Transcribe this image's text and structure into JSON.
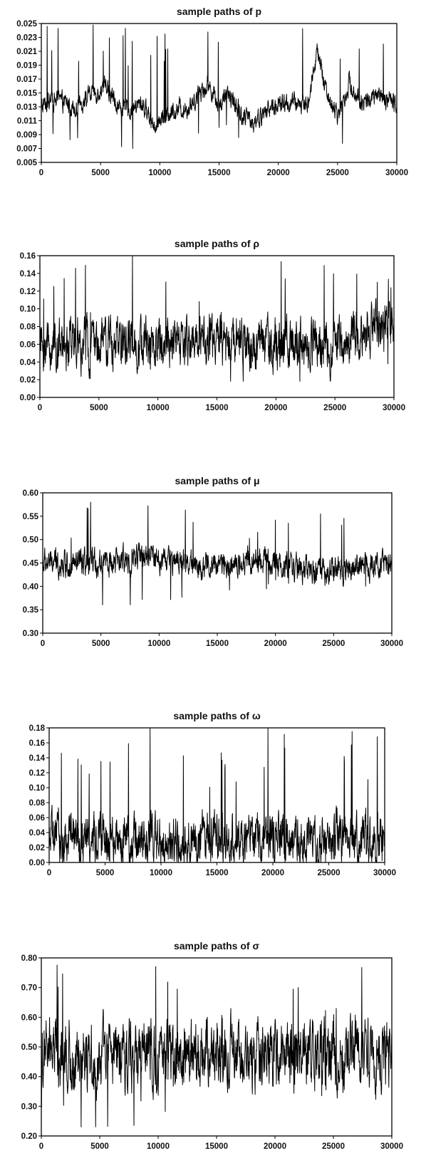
{
  "chart_data": [
    {
      "type": "line",
      "title": "sample paths of p",
      "xlabel": "",
      "ylabel": "",
      "xlim": [
        0,
        30000
      ],
      "ylim": [
        0.005,
        0.025
      ],
      "x_ticks": [
        "0",
        "5000",
        "10000",
        "15000",
        "20000",
        "25000",
        "30000"
      ],
      "y_ticks": [
        "0.005",
        "0.007",
        "0.009",
        "0.011",
        "0.013",
        "0.015",
        "0.017",
        "0.019",
        "0.021",
        "0.023",
        "0.025"
      ],
      "grid": false,
      "series": [
        {
          "values": [
            {
              "x": 0,
              "y": 0.013
            },
            {
              "x": 1000,
              "y": 0.014
            },
            {
              "x": 2000,
              "y": 0.0135
            },
            {
              "x": 3000,
              "y": 0.013
            },
            {
              "x": 4000,
              "y": 0.0145
            },
            {
              "x": 5500,
              "y": 0.016
            },
            {
              "x": 6500,
              "y": 0.013
            },
            {
              "x": 7500,
              "y": 0.0125
            },
            {
              "x": 8500,
              "y": 0.0135
            },
            {
              "x": 9500,
              "y": 0.0105
            },
            {
              "x": 11000,
              "y": 0.0125
            },
            {
              "x": 12500,
              "y": 0.013
            },
            {
              "x": 14000,
              "y": 0.0165
            },
            {
              "x": 15000,
              "y": 0.0135
            },
            {
              "x": 16000,
              "y": 0.0145
            },
            {
              "x": 17000,
              "y": 0.0115
            },
            {
              "x": 18000,
              "y": 0.011
            },
            {
              "x": 19500,
              "y": 0.013
            },
            {
              "x": 21000,
              "y": 0.0135
            },
            {
              "x": 22500,
              "y": 0.0135
            },
            {
              "x": 23300,
              "y": 0.021
            },
            {
              "x": 24000,
              "y": 0.0155
            },
            {
              "x": 25000,
              "y": 0.0115
            },
            {
              "x": 26000,
              "y": 0.0165
            },
            {
              "x": 27000,
              "y": 0.0135
            },
            {
              "x": 28500,
              "y": 0.0145
            },
            {
              "x": 30000,
              "y": 0.0135
            }
          ],
          "y_min": 0.007,
          "y_max": 0.0248,
          "noise": 0.0011
        }
      ]
    },
    {
      "type": "line",
      "title": "sample paths of ρ",
      "xlabel": "",
      "ylabel": "",
      "xlim": [
        0,
        30000
      ],
      "ylim": [
        0,
        0.16
      ],
      "x_ticks": [
        "0",
        "5000",
        "10000",
        "15000",
        "20000",
        "25000",
        "30000"
      ],
      "y_ticks": [
        "0.00",
        "0.02",
        "0.04",
        "0.06",
        "0.08",
        "0.10",
        "0.12",
        "0.14",
        "0.16"
      ],
      "grid": false,
      "series": [
        {
          "values": [
            {
              "x": 0,
              "y": 0.06
            },
            {
              "x": 5000,
              "y": 0.06
            },
            {
              "x": 10000,
              "y": 0.06
            },
            {
              "x": 15000,
              "y": 0.065
            },
            {
              "x": 20000,
              "y": 0.06
            },
            {
              "x": 25000,
              "y": 0.06
            },
            {
              "x": 28000,
              "y": 0.075
            },
            {
              "x": 30000,
              "y": 0.08
            }
          ],
          "y_min": 0.018,
          "y_max": 0.16,
          "noise": 0.022
        }
      ]
    },
    {
      "type": "line",
      "title": "sample paths of μ",
      "xlabel": "",
      "ylabel": "",
      "xlim": [
        0,
        30000
      ],
      "ylim": [
        0.3,
        0.6
      ],
      "x_ticks": [
        "0",
        "5000",
        "10000",
        "15000",
        "20000",
        "25000",
        "30000"
      ],
      "y_ticks": [
        "0.30",
        "0.35",
        "0.40",
        "0.45",
        "0.50",
        "0.55",
        "0.60"
      ],
      "grid": false,
      "series": [
        {
          "values": [
            {
              "x": 0,
              "y": 0.45
            },
            {
              "x": 5000,
              "y": 0.45
            },
            {
              "x": 9000,
              "y": 0.465
            },
            {
              "x": 14000,
              "y": 0.44
            },
            {
              "x": 18000,
              "y": 0.46
            },
            {
              "x": 23500,
              "y": 0.43
            },
            {
              "x": 30000,
              "y": 0.45
            }
          ],
          "y_min": 0.36,
          "y_max": 0.58,
          "noise": 0.022
        }
      ]
    },
    {
      "type": "line",
      "title": "sample paths of ω",
      "xlabel": "",
      "ylabel": "",
      "xlim": [
        0,
        30000
      ],
      "ylim": [
        0,
        0.18
      ],
      "x_ticks": [
        "0",
        "5000",
        "10000",
        "15000",
        "20000",
        "25000",
        "30000"
      ],
      "y_ticks": [
        "0.00",
        "0.02",
        "0.04",
        "0.06",
        "0.08",
        "0.10",
        "0.12",
        "0.14",
        "0.16",
        "0.18"
      ],
      "grid": false,
      "series": [
        {
          "values": [
            {
              "x": 0,
              "y": 0.03
            },
            {
              "x": 10000,
              "y": 0.03
            },
            {
              "x": 20000,
              "y": 0.03
            },
            {
              "x": 30000,
              "y": 0.03
            }
          ],
          "y_min": 0.0,
          "y_max": 0.18,
          "noise": 0.025
        }
      ]
    },
    {
      "type": "line",
      "title": "sample paths of σ",
      "xlabel": "",
      "ylabel": "",
      "xlim": [
        0,
        30000
      ],
      "ylim": [
        0.2,
        0.8
      ],
      "x_ticks": [
        "0",
        "5000",
        "10000",
        "15000",
        "20000",
        "25000",
        "30000"
      ],
      "y_ticks": [
        "0.20",
        "0.30",
        "0.40",
        "0.50",
        "0.60",
        "0.70",
        "0.80"
      ],
      "grid": false,
      "series": [
        {
          "values": [
            {
              "x": 0,
              "y": 0.47
            },
            {
              "x": 10000,
              "y": 0.47
            },
            {
              "x": 20000,
              "y": 0.47
            },
            {
              "x": 30000,
              "y": 0.47
            }
          ],
          "y_min": 0.23,
          "y_max": 0.8,
          "noise": 0.09
        }
      ]
    }
  ]
}
